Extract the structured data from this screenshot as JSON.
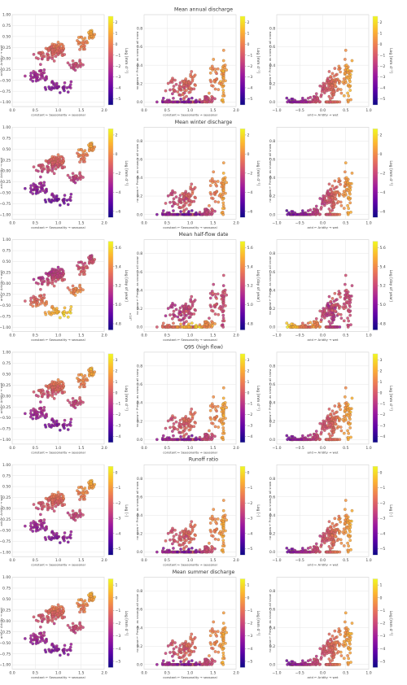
{
  "colormap": [
    "#0d0887",
    "#5c01a6",
    "#9c179e",
    "#cc4778",
    "#ed7953",
    "#fdb42f",
    "#f0f921"
  ],
  "chart_data": [
    {
      "type": "scatter",
      "title": "Mean annual discharge",
      "unit": "Log [mm d⁻¹]",
      "cb_ticks": [
        "2",
        "1",
        "0",
        "−1",
        "−2",
        "−3",
        "−4",
        "−5"
      ],
      "cb_range": [
        -5.5,
        2.5
      ],
      "panels": [
        {
          "xlabel": "constant ← Seasonality → seasonal",
          "ylabel": "arid ← Aridity → wet",
          "xlim": [
            0,
            2
          ],
          "ylim": [
            -1.1,
            1.0
          ],
          "xticks": [
            "0.0",
            "0.5",
            "1.0",
            "1.5",
            "2.0"
          ],
          "yticks": [
            "1.00",
            "0.75",
            "0.50",
            "0.25",
            "0.00",
            "−0.25",
            "−0.50",
            "−0.75",
            "−1.00"
          ]
        },
        {
          "xlabel": "constant ← Seasonality → seasonal",
          "ylabel": "no snow ← Precip. as snow → all snow",
          "xlim": [
            0,
            2
          ],
          "ylim": [
            -0.05,
            0.95
          ],
          "xticks": [
            "0.0",
            "0.5",
            "1.0",
            "1.5",
            "2.0"
          ],
          "yticks": [
            "0.8",
            "0.6",
            "0.4",
            "0.2",
            "0.0"
          ]
        },
        {
          "xlabel": "arid ← Aridity → wet",
          "ylabel": "no snow ← Precip. as snow → all snow",
          "xlim": [
            -1.0,
            1.0
          ],
          "ylim": [
            -0.05,
            0.95
          ],
          "xticks": [
            "−1.0",
            "−0.5",
            "0.0",
            "0.5",
            "1.0"
          ],
          "yticks": [
            "0.8",
            "0.6",
            "0.4",
            "0.2",
            "0.0"
          ]
        }
      ]
    },
    {
      "type": "scatter",
      "title": "Mean winter discharge",
      "unit": "Log [mm d⁻¹]",
      "cb_ticks": [
        "2",
        "0",
        "−2",
        "−4",
        "−6"
      ],
      "cb_range": [
        -7.5,
        2.5
      ],
      "panels": [
        {
          "xlabel": "constant ← Seasonality → seasonal",
          "ylabel": "arid ← Aridity → wet",
          "xlim": [
            0,
            2
          ],
          "ylim": [
            -1.1,
            1.0
          ],
          "xticks": [
            "0.0",
            "0.5",
            "1.0",
            "1.5",
            "2.0"
          ],
          "yticks": [
            "1.00",
            "0.75",
            "0.50",
            "0.25",
            "0.00",
            "−0.25",
            "−0.50",
            "−0.75",
            "−1.00"
          ]
        },
        {
          "xlabel": "constant ← Seasonality → seasonal",
          "ylabel": "no snow ← Precip. as snow → all snow",
          "xlim": [
            0,
            2
          ],
          "ylim": [
            -0.05,
            0.95
          ],
          "xticks": [
            "0.0",
            "0.5",
            "1.0",
            "1.5",
            "2.0"
          ],
          "yticks": [
            "0.8",
            "0.6",
            "0.4",
            "0.2",
            "0.0"
          ]
        },
        {
          "xlabel": "arid ← Aridity → wet",
          "ylabel": "no snow ← Precip. as snow → all snow",
          "xlim": [
            -1.0,
            1.0
          ],
          "ylim": [
            -0.05,
            0.95
          ],
          "xticks": [
            "−1.0",
            "−0.5",
            "0.0",
            "0.5",
            "1.0"
          ],
          "yticks": [
            "0.8",
            "0.6",
            "0.4",
            "0.2",
            "0.0"
          ]
        }
      ]
    },
    {
      "type": "scatter",
      "title": "Mean half-flow date",
      "unit": "Log [day of year]",
      "cb_ticks": [
        "5.6",
        "5.4",
        "5.2",
        "5.0",
        "4.8"
      ],
      "cb_range": [
        4.7,
        5.7
      ],
      "cb_extra": "×10°",
      "panels": [
        {
          "xlabel": "constant ← Seasonality → seasonal",
          "ylabel": "arid ← Aridity → wet",
          "xlim": [
            0,
            2
          ],
          "ylim": [
            -1.1,
            1.0
          ],
          "xticks": [
            "0.0",
            "0.5",
            "1.0",
            "1.5",
            "2.0"
          ],
          "yticks": [
            "1.00",
            "0.75",
            "0.50",
            "0.25",
            "0.00",
            "−0.25",
            "−0.50",
            "−0.75",
            "−1.00"
          ]
        },
        {
          "xlabel": "constant ← Seasonality → seasonal",
          "ylabel": "no snow ← Precip. as snow → all snow",
          "xlim": [
            0,
            2
          ],
          "ylim": [
            -0.05,
            0.95
          ],
          "xticks": [
            "0.0",
            "0.5",
            "1.0",
            "1.5",
            "2.0"
          ],
          "yticks": [
            "0.8",
            "0.6",
            "0.4",
            "0.2",
            "0.0"
          ]
        },
        {
          "xlabel": "arid ← Aridity → wet",
          "ylabel": "no snow ← Precip. as snow → all snow",
          "xlim": [
            -1.0,
            1.0
          ],
          "ylim": [
            -0.05,
            0.95
          ],
          "xticks": [
            "−1.0",
            "−0.5",
            "0.0",
            "0.5",
            "1.0"
          ],
          "yticks": [
            "0.8",
            "0.6",
            "0.4",
            "0.2",
            "0.0"
          ]
        }
      ]
    },
    {
      "type": "scatter",
      "title": "Q95 (high flow)",
      "unit": "Log [mm d⁻¹]",
      "cb_ticks": [
        "3",
        "2",
        "1",
        "0",
        "−1",
        "−2",
        "−3",
        "−4"
      ],
      "cb_range": [
        -4.5,
        3.5
      ],
      "panels": [
        {
          "xlabel": "constant ← Seasonality → seasonal",
          "ylabel": "arid ← Aridity → wet",
          "xlim": [
            0,
            2
          ],
          "ylim": [
            -1.1,
            1.0
          ],
          "xticks": [
            "0.0",
            "0.5",
            "1.0",
            "1.5",
            "2.0"
          ],
          "yticks": [
            "1.00",
            "0.75",
            "0.50",
            "0.25",
            "0.00",
            "−0.25",
            "−0.50",
            "−0.75",
            "−1.00"
          ]
        },
        {
          "xlabel": "constant ← Seasonality → seasonal",
          "ylabel": "no snow ← Precip. as snow → all snow",
          "xlim": [
            0,
            2
          ],
          "ylim": [
            -0.05,
            0.95
          ],
          "xticks": [
            "0.0",
            "0.5",
            "1.0",
            "1.5",
            "2.0"
          ],
          "yticks": [
            "0.8",
            "0.6",
            "0.4",
            "0.2",
            "0.0"
          ]
        },
        {
          "xlabel": "arid ← Aridity → wet",
          "ylabel": "no snow ← Precip. as snow → all snow",
          "xlim": [
            -1.0,
            1.0
          ],
          "ylim": [
            -0.05,
            0.95
          ],
          "xticks": [
            "−1.0",
            "−0.5",
            "0.0",
            "0.5",
            "1.0"
          ],
          "yticks": [
            "0.8",
            "0.6",
            "0.4",
            "0.2",
            "0.0"
          ]
        }
      ]
    },
    {
      "type": "scatter",
      "title": "Runoff ratio",
      "unit": "Log [-]",
      "cb_ticks": [
        "0",
        "−1",
        "−2",
        "−3",
        "−4",
        "−5"
      ],
      "cb_range": [
        -5.5,
        0.5
      ],
      "panels": [
        {
          "xlabel": "constant ← Seasonality → seasonal",
          "ylabel": "arid ← Aridity → wet",
          "xlim": [
            0,
            2
          ],
          "ylim": [
            -1.1,
            1.0
          ],
          "xticks": [
            "0.0",
            "0.5",
            "1.0",
            "1.5",
            "2.0"
          ],
          "yticks": [
            "1.00",
            "0.75",
            "0.50",
            "0.25",
            "0.00",
            "−0.25",
            "−0.50",
            "−0.75",
            "−1.00"
          ]
        },
        {
          "xlabel": "constant ← Seasonality → seasonal",
          "ylabel": "no snow ← Precip. as snow → all snow",
          "xlim": [
            0,
            2
          ],
          "ylim": [
            -0.05,
            0.95
          ],
          "xticks": [
            "0.0",
            "0.5",
            "1.0",
            "1.5",
            "2.0"
          ],
          "yticks": [
            "0.8",
            "0.6",
            "0.4",
            "0.2",
            "0.0"
          ]
        },
        {
          "xlabel": "arid ← Aridity → wet",
          "ylabel": "no snow ← Precip. as snow → all snow",
          "xlim": [
            -1.0,
            1.0
          ],
          "ylim": [
            -0.05,
            0.95
          ],
          "xticks": [
            "−1.0",
            "−0.5",
            "0.0",
            "0.5",
            "1.0"
          ],
          "yticks": [
            "0.8",
            "0.6",
            "0.4",
            "0.2",
            "0.0"
          ]
        }
      ]
    },
    {
      "type": "scatter",
      "title": "Mean summer discharge",
      "unit": "Log [mm d⁻¹]",
      "cb_ticks": [
        "1",
        "0",
        "−1",
        "−2",
        "−3",
        "−4",
        "−5"
      ],
      "cb_range": [
        -5.5,
        1.5
      ],
      "panels": [
        {
          "xlabel": "constant ← Seasonality → seasonal",
          "ylabel": "arid ← Aridity → wet",
          "xlim": [
            0,
            2
          ],
          "ylim": [
            -1.1,
            1.0
          ],
          "xticks": [
            "0.0",
            "0.5",
            "1.0",
            "1.5",
            "2.0"
          ],
          "yticks": [
            "1.00",
            "0.75",
            "0.50",
            "0.25",
            "0.00",
            "−0.25",
            "−0.50",
            "−0.75",
            "−1.00"
          ]
        },
        {
          "xlabel": "constant ← Seasonality → seasonal",
          "ylabel": "no snow ← Precip. as snow → all snow",
          "xlim": [
            0,
            2
          ],
          "ylim": [
            -0.05,
            0.95
          ],
          "xticks": [
            "0.0",
            "0.5",
            "1.0",
            "1.5",
            "2.0"
          ],
          "yticks": [
            "0.8",
            "0.6",
            "0.4",
            "0.2",
            "0.0"
          ]
        },
        {
          "xlabel": "arid ← Aridity → wet",
          "ylabel": "no snow ← Precip. as snow → all snow",
          "xlim": [
            -1.0,
            1.0
          ],
          "ylim": [
            -0.05,
            0.95
          ],
          "xticks": [
            "−1.0",
            "−0.5",
            "0.0",
            "0.5",
            "1.0"
          ],
          "yticks": [
            "0.8",
            "0.6",
            "0.4",
            "0.2",
            "0.0"
          ]
        }
      ]
    }
  ]
}
